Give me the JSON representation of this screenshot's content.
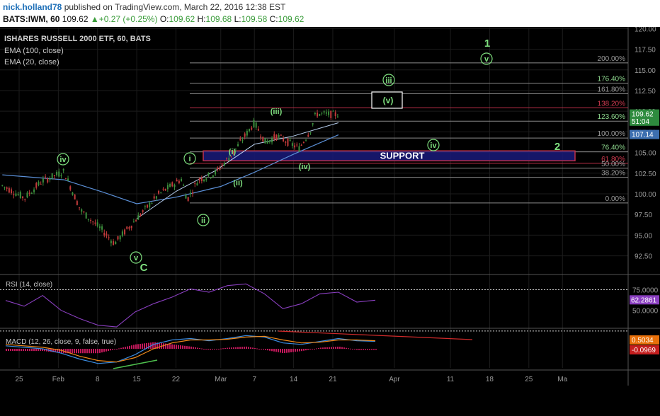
{
  "header": {
    "author": "nick.holland78",
    "published_text": "published on TradingView.com, March 22, 2016 12:38 EST",
    "ticker": "BATS:IWM, 60",
    "last": "109.62",
    "change": "+0.27 (+0.25%)",
    "o_label": "O:",
    "o": "109.62",
    "h_label": "H:",
    "h": "109.68",
    "l_label": "L:",
    "l": "109.58",
    "c_label": "C:",
    "c": "109.62"
  },
  "legend": {
    "title": "ISHARES RUSSELL 2000 ETF, 60, BATS",
    "ema100": "EMA (100, close)",
    "ema20": "EMA (20, close)"
  },
  "colors": {
    "background": "#000000",
    "grid": "#1c1c1c",
    "wave_green": "#7fe07f",
    "candle_up": "#3c8f3c",
    "candle_down": "#c23b3b",
    "ema100": "#5b8fd6",
    "ema20": "#b8d0f0",
    "support_fill": "#1a1a7a",
    "support_border": "#c0304a",
    "rsi": "#8a3fc0",
    "macd_line": "#3a8be0",
    "signal_line": "#f08a1a",
    "hist": "#c2185b",
    "price_tag_green": "#2e8b3e",
    "price_tag_blue": "#3d6fb0",
    "orange_tag": "#e8700a",
    "red_tag": "#c41e1e",
    "rsi_tag": "#8a3fc0"
  },
  "chart_data": [
    {
      "type": "line",
      "title": "ISHARES RUSSELL 2000 ETF, 60, BATS",
      "x_tick_labels": [
        "25",
        "Feb",
        "8",
        "15",
        "22",
        "Mar",
        "7",
        "14",
        "21",
        "Apr",
        "11",
        "18",
        "25",
        "Ma"
      ],
      "y_ticks": [
        "120.00",
        "117.50",
        "115.00",
        "112.50",
        "110.00",
        "107.50",
        "105.00",
        "102.50",
        "100.00",
        "97.50",
        "95.00",
        "92.50"
      ],
      "ylim": [
        90.5,
        120.2
      ],
      "series": [
        {
          "name": "price",
          "x_date": [
            "2016-01-22",
            "2016-01-26",
            "2016-01-29",
            "2016-02-02",
            "2016-02-05",
            "2016-02-09",
            "2016-02-11",
            "2016-02-15",
            "2016-02-19",
            "2016-02-23",
            "2016-02-24",
            "2016-02-26",
            "2016-02-29",
            "2016-03-03",
            "2016-03-07",
            "2016-03-09",
            "2016-03-11",
            "2016-03-15",
            "2016-03-17",
            "2016-03-18",
            "2016-03-21",
            "2016-03-22"
          ],
          "values": [
            101.0,
            99.5,
            101.5,
            102.7,
            98.0,
            95.5,
            94.0,
            97.0,
            100.0,
            101.8,
            99.3,
            101.7,
            102.5,
            104.8,
            108.6,
            106.2,
            107.0,
            105.5,
            107.7,
            109.7,
            109.6,
            109.62
          ]
        },
        {
          "name": "EMA (100, close)",
          "x_date": [
            "2016-01-22",
            "2016-02-02",
            "2016-02-09",
            "2016-02-15",
            "2016-02-22",
            "2016-03-01",
            "2016-03-07",
            "2016-03-14",
            "2016-03-22"
          ],
          "values": [
            102.3,
            101.7,
            100.2,
            98.8,
            99.6,
            100.9,
            102.6,
            104.8,
            107.14
          ]
        },
        {
          "name": "EMA (20, close)",
          "x_date": [
            "2016-02-15",
            "2016-02-22",
            "2016-02-29",
            "2016-03-07",
            "2016-03-14",
            "2016-03-22"
          ],
          "values": [
            97.0,
            100.3,
            102.8,
            106.0,
            107.0,
            108.6
          ]
        }
      ],
      "fibonacci": [
        {
          "label": "200.00%",
          "value": 115.85
        },
        {
          "label": "176.40%",
          "value": 113.4
        },
        {
          "label": "161.80%",
          "value": 112.12
        },
        {
          "label": "138.20%",
          "value": 110.4
        },
        {
          "label": "123.60%",
          "value": 108.8
        },
        {
          "label": "100.00%",
          "value": 106.75
        },
        {
          "label": "76.40%",
          "value": 105.1
        },
        {
          "label": "61.80%",
          "value": 103.7
        },
        {
          "label": "50.00%",
          "value": 103.1
        },
        {
          "label": "38.20%",
          "value": 102.0
        },
        {
          "label": "0.00%",
          "value": 98.9
        }
      ],
      "support": {
        "label": "SUPPORT",
        "from": 104.0,
        "to": 105.2
      },
      "target_box_label": "(v)",
      "wave_labels": [
        "iv",
        "v",
        "C",
        "i",
        "ii",
        "(i)",
        "(ii)",
        "(iii)",
        "(iv)",
        "iii",
        "(v)",
        "iv",
        "v",
        "1",
        "2"
      ],
      "price_tags": [
        {
          "label": "109.62",
          "value": 109.62,
          "kind": "green"
        },
        {
          "label": "51:04",
          "value": 108.75,
          "kind": "green"
        },
        {
          "label": "107.14",
          "value": 107.14,
          "kind": "blue"
        }
      ]
    },
    {
      "type": "line",
      "title": "RSI (14, close)",
      "y_ticks": [
        "75.0000",
        "50.0000"
      ],
      "last_value_label": "62.2861",
      "ylim": [
        30,
        90
      ],
      "values": [
        62,
        55,
        68,
        50,
        40,
        32,
        30,
        48,
        58,
        66,
        76,
        72,
        80,
        82,
        70,
        52,
        58,
        70,
        72,
        60,
        62.29
      ]
    },
    {
      "type": "line",
      "title": "MACD (12, 26, close, 9, false, true)",
      "last_value_labels": [
        "0.5034",
        "-0.0969"
      ],
      "series": [
        {
          "name": "MACD",
          "values": [
            0.2,
            0.1,
            0.0,
            -0.3,
            -0.7,
            -1.0,
            -0.9,
            -0.4,
            0.3,
            0.6,
            0.7,
            0.55,
            0.7,
            0.9,
            0.8,
            0.4,
            0.3,
            0.5,
            0.7,
            0.55,
            0.5034
          ]
        },
        {
          "name": "signal",
          "values": [
            0.3,
            0.2,
            0.1,
            -0.1,
            -0.5,
            -0.8,
            -0.9,
            -0.6,
            0.0,
            0.4,
            0.6,
            0.6,
            0.65,
            0.8,
            0.85,
            0.6,
            0.4,
            0.45,
            0.6,
            0.6,
            0.55
          ]
        }
      ]
    }
  ]
}
